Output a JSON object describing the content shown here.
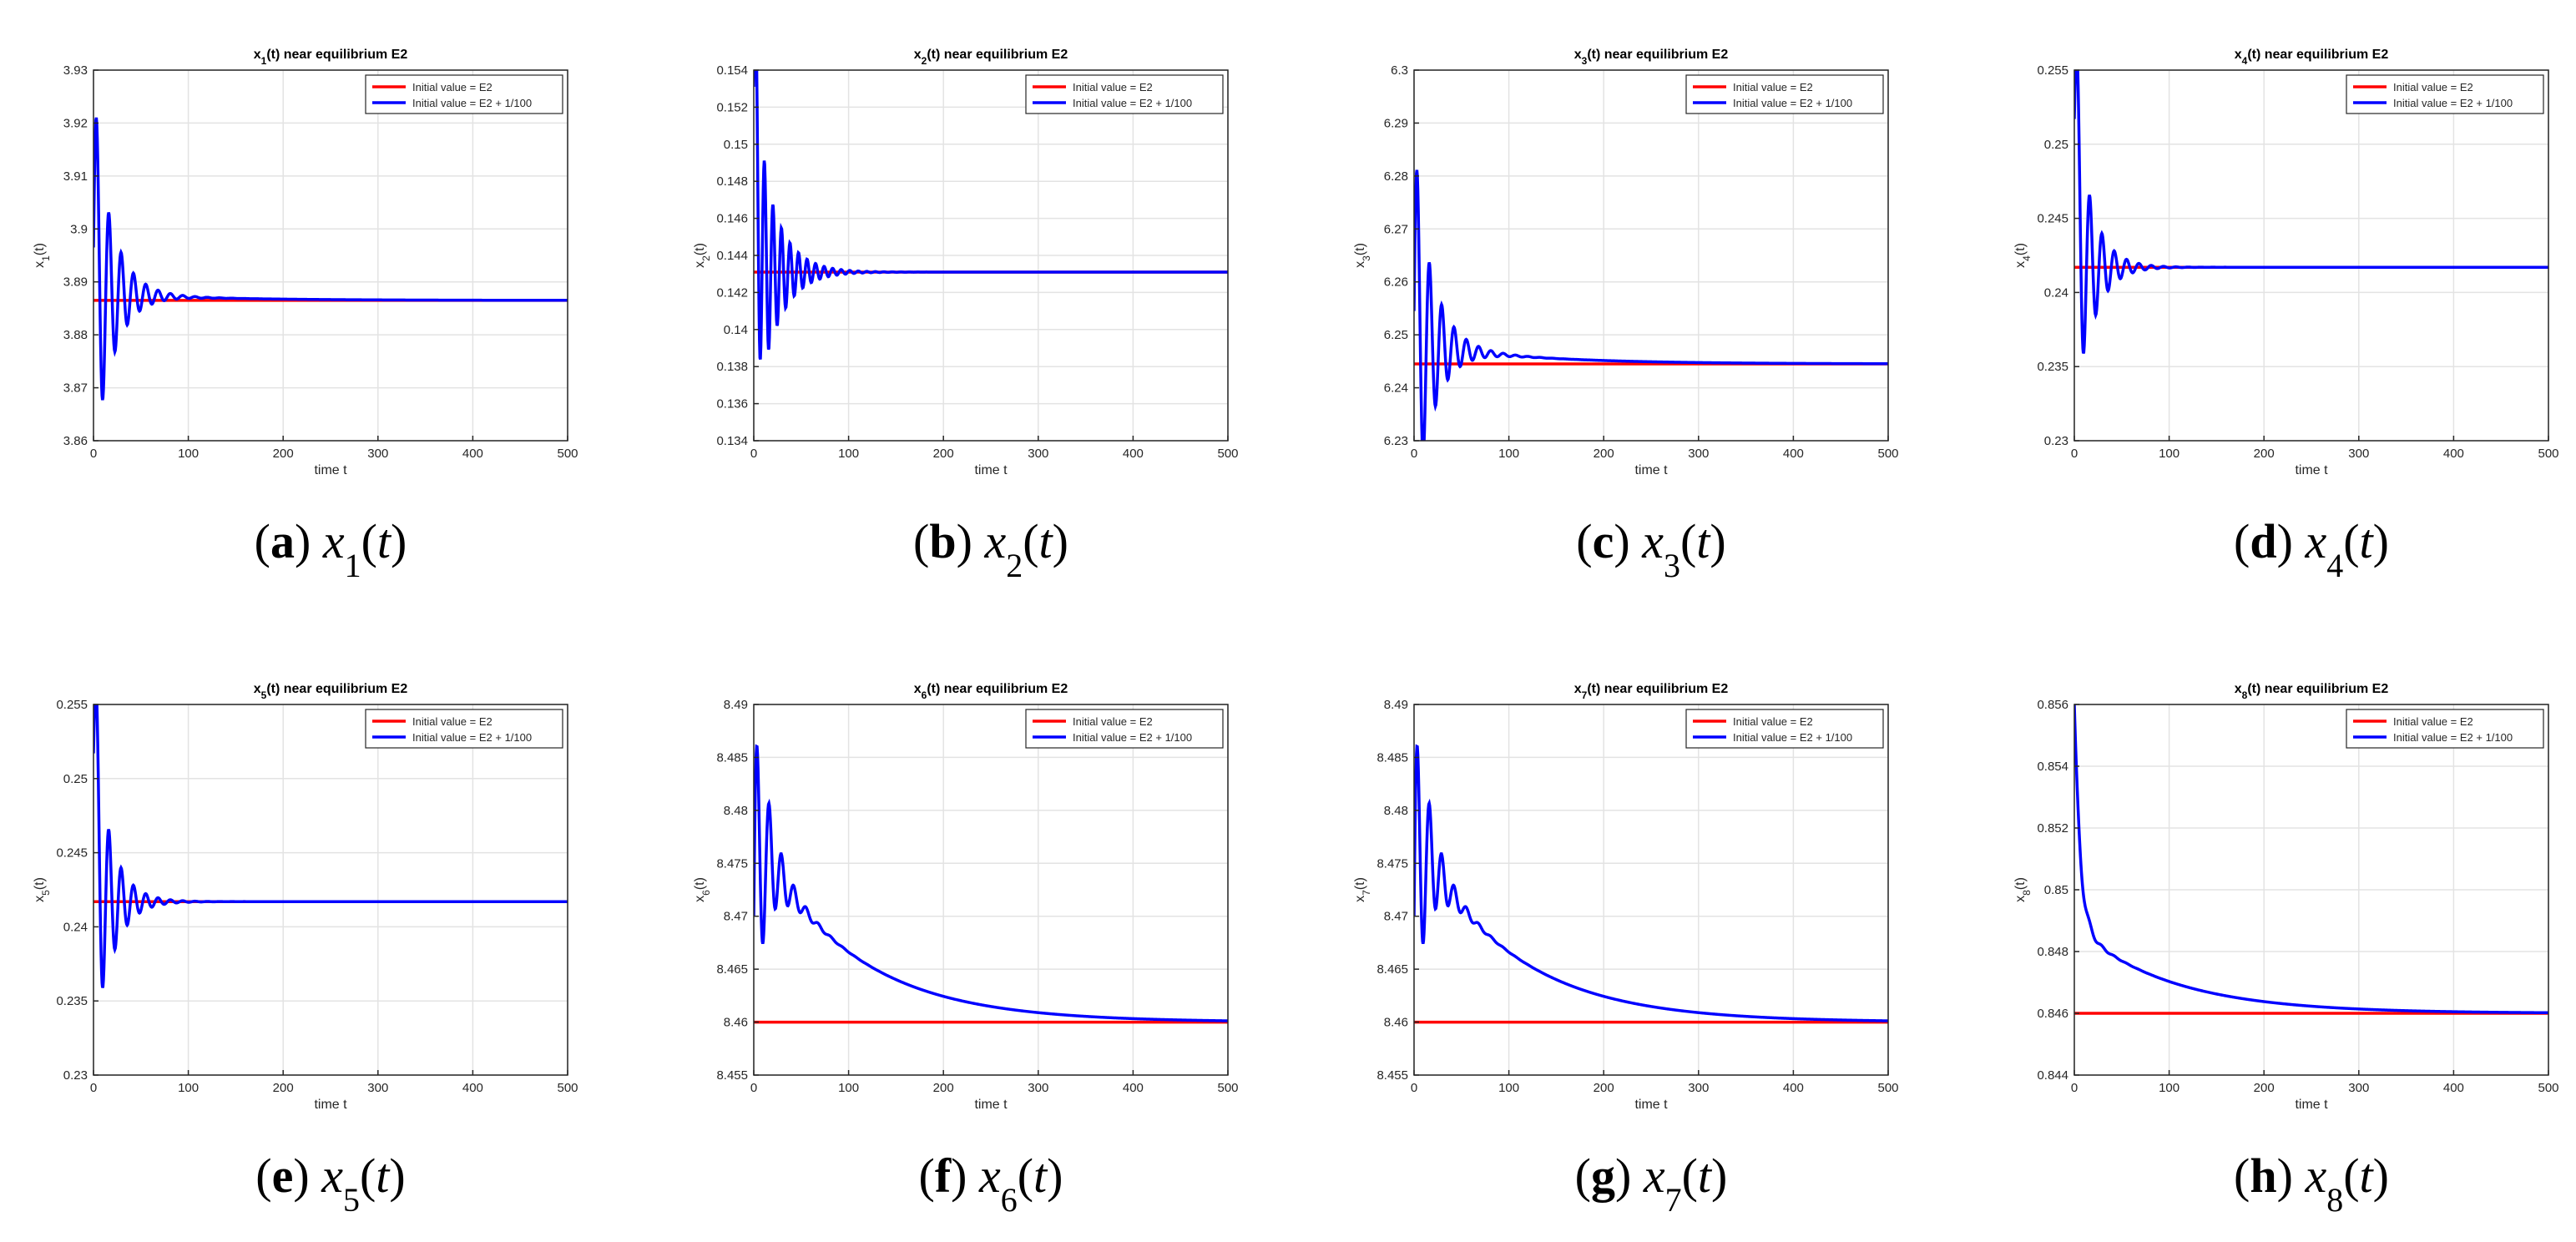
{
  "figure": {
    "legend_labels": [
      "Initial value = E2",
      "Initial value = E2 + 1/100"
    ],
    "xlabel": "time t",
    "title_suffix": " near equilibrium E2",
    "colors": {
      "red": "#ff0000",
      "blue": "#0000ff",
      "grid": "#e3e3e3",
      "axis": "#262626"
    }
  },
  "chart_data": [
    {
      "type": "line",
      "var": "1",
      "caption_letter": "a",
      "title": "x1(t) near equilibrium E2",
      "xlabel": "time t",
      "ylabel": "x1(t)",
      "xlim": [
        0,
        500
      ],
      "ylim": [
        3.86,
        3.93
      ],
      "xticks": [
        0,
        100,
        200,
        300,
        400,
        500
      ],
      "yticks": [
        "3.86",
        "3.87",
        "3.88",
        "3.89",
        "3.9",
        "3.91",
        "3.92",
        "3.93"
      ],
      "legend": "top-right",
      "series": [
        {
          "name": "Initial value = E2",
          "color": "#ff0000",
          "constant": 3.8865
        },
        {
          "name": "Initial value = E2 + 1/100",
          "color": "#0000ff",
          "start": 3.8965,
          "final": 3.8865,
          "osc": {
            "amp": 0.034,
            "period": 13,
            "damp": 20
          },
          "slow": {
            "amp": 0.0015,
            "tau": 110
          }
        }
      ]
    },
    {
      "type": "line",
      "var": "2",
      "caption_letter": "b",
      "title": "x2(t) near equilibrium E2",
      "xlabel": "time t",
      "ylabel": "x2(t)",
      "xlim": [
        0,
        500
      ],
      "ylim": [
        0.134,
        0.154
      ],
      "xticks": [
        0,
        100,
        200,
        300,
        400,
        500
      ],
      "yticks": [
        "0.134",
        "0.136",
        "0.138",
        "0.14",
        "0.142",
        "0.144",
        "0.146",
        "0.148",
        "0.15",
        "0.152",
        "0.154"
      ],
      "legend": "top-right",
      "series": [
        {
          "name": "Initial value = E2",
          "color": "#ff0000",
          "constant": 0.1431
        },
        {
          "name": "Initial value = E2 + 1/100",
          "color": "#0000ff",
          "start": 0.1531,
          "final": 0.1431,
          "osc": {
            "amp": 0.009,
            "period": 9,
            "damp": 22
          }
        }
      ]
    },
    {
      "type": "line",
      "var": "3",
      "caption_letter": "c",
      "title": "x3(t) near equilibrium E2",
      "xlabel": "time t",
      "ylabel": "x3(t)",
      "xlim": [
        0,
        500
      ],
      "ylim": [
        6.23,
        6.3
      ],
      "xticks": [
        0,
        100,
        200,
        300,
        400,
        500
      ],
      "yticks": [
        "6.23",
        "6.24",
        "6.25",
        "6.26",
        "6.27",
        "6.28",
        "6.29",
        "6.3"
      ],
      "legend": "top-right",
      "series": [
        {
          "name": "Initial value = E2",
          "color": "#ff0000",
          "constant": 6.2445
        },
        {
          "name": "Initial value = E2 + 1/100",
          "color": "#0000ff",
          "start": 6.2545,
          "final": 6.2445,
          "osc": {
            "amp": 0.035,
            "period": 13,
            "damp": 20
          },
          "slow": {
            "amp": 0.004,
            "tau": 110
          }
        }
      ]
    },
    {
      "type": "line",
      "var": "4",
      "caption_letter": "d",
      "title": "x4(t) near equilibrium E2",
      "xlabel": "time t",
      "ylabel": "x4(t)",
      "xlim": [
        0,
        500
      ],
      "ylim": [
        0.23,
        0.255
      ],
      "xticks": [
        0,
        100,
        200,
        300,
        400,
        500
      ],
      "yticks": [
        "0.23",
        "0.235",
        "0.24",
        "0.245",
        "0.25",
        "0.255"
      ],
      "legend": "top-right",
      "series": [
        {
          "name": "Initial value = E2",
          "color": "#ff0000",
          "constant": 0.2417
        },
        {
          "name": "Initial value = E2 + 1/100",
          "color": "#0000ff",
          "start": 0.2517,
          "final": 0.2417,
          "osc": {
            "amp": 0.0115,
            "period": 13,
            "damp": 18
          }
        }
      ]
    },
    {
      "type": "line",
      "var": "5",
      "caption_letter": "e",
      "title": "x5(t) near equilibrium E2",
      "xlabel": "time t",
      "ylabel": "x5(t)",
      "xlim": [
        0,
        500
      ],
      "ylim": [
        0.23,
        0.255
      ],
      "xticks": [
        0,
        100,
        200,
        300,
        400,
        500
      ],
      "yticks": [
        "0.23",
        "0.235",
        "0.24",
        "0.245",
        "0.25",
        "0.255"
      ],
      "legend": "top-right",
      "series": [
        {
          "name": "Initial value = E2",
          "color": "#ff0000",
          "constant": 0.2417
        },
        {
          "name": "Initial value = E2 + 1/100",
          "color": "#0000ff",
          "start": 0.2517,
          "final": 0.2417,
          "osc": {
            "amp": 0.0115,
            "period": 13,
            "damp": 18
          }
        }
      ]
    },
    {
      "type": "line",
      "var": "6",
      "caption_letter": "f",
      "title": "x6(t) near equilibrium E2",
      "xlabel": "time t",
      "ylabel": "x6(t)",
      "xlim": [
        0,
        500
      ],
      "ylim": [
        8.455,
        8.49
      ],
      "xticks": [
        0,
        100,
        200,
        300,
        400,
        500
      ],
      "yticks": [
        "8.455",
        "8.46",
        "8.465",
        "8.47",
        "8.475",
        "8.48",
        "8.485",
        "8.49"
      ],
      "legend": "top-right",
      "series": [
        {
          "name": "Initial value = E2",
          "color": "#ff0000",
          "constant": 8.46
        },
        {
          "name": "Initial value = E2 + 1/100",
          "color": "#0000ff",
          "start": 8.47,
          "final": 8.46,
          "osc": {
            "amp": 0.015,
            "period": 13,
            "damp": 16
          },
          "slow": {
            "amp": 0.018,
            "tau": 100
          }
        }
      ]
    },
    {
      "type": "line",
      "var": "7",
      "caption_letter": "g",
      "title": "x7(t) near equilibrium E2",
      "xlabel": "time t",
      "ylabel": "x7(t)",
      "xlim": [
        0,
        500
      ],
      "ylim": [
        8.455,
        8.49
      ],
      "xticks": [
        0,
        100,
        200,
        300,
        400,
        500
      ],
      "yticks": [
        "8.455",
        "8.46",
        "8.465",
        "8.47",
        "8.475",
        "8.48",
        "8.485",
        "8.49"
      ],
      "legend": "top-right",
      "series": [
        {
          "name": "Initial value = E2",
          "color": "#ff0000",
          "constant": 8.46
        },
        {
          "name": "Initial value = E2 + 1/100",
          "color": "#0000ff",
          "start": 8.47,
          "final": 8.46,
          "osc": {
            "amp": 0.015,
            "period": 13,
            "damp": 16
          },
          "slow": {
            "amp": 0.018,
            "tau": 100
          }
        }
      ]
    },
    {
      "type": "line",
      "var": "8",
      "caption_letter": "h",
      "title": "x8(t) near equilibrium E2",
      "xlabel": "time t",
      "ylabel": "x8(t)",
      "xlim": [
        0,
        500
      ],
      "ylim": [
        0.844,
        0.856
      ],
      "xticks": [
        0,
        100,
        200,
        300,
        400,
        500
      ],
      "yticks": [
        "0.844",
        "0.846",
        "0.848",
        "0.85",
        "0.852",
        "0.854",
        "0.856"
      ],
      "legend": "top-right",
      "series": [
        {
          "name": "Initial value = E2",
          "color": "#ff0000",
          "constant": 0.846
        },
        {
          "name": "Initial value = E2 + 1/100",
          "color": "#0000ff",
          "start": 0.856,
          "final": 0.846,
          "fast": {
            "amp": 0.0072,
            "tau": 6
          },
          "slow": {
            "amp": 0.0028,
            "tau": 100
          },
          "osc": {
            "amp": 0.0003,
            "period": 13,
            "damp": 15
          }
        }
      ]
    }
  ]
}
